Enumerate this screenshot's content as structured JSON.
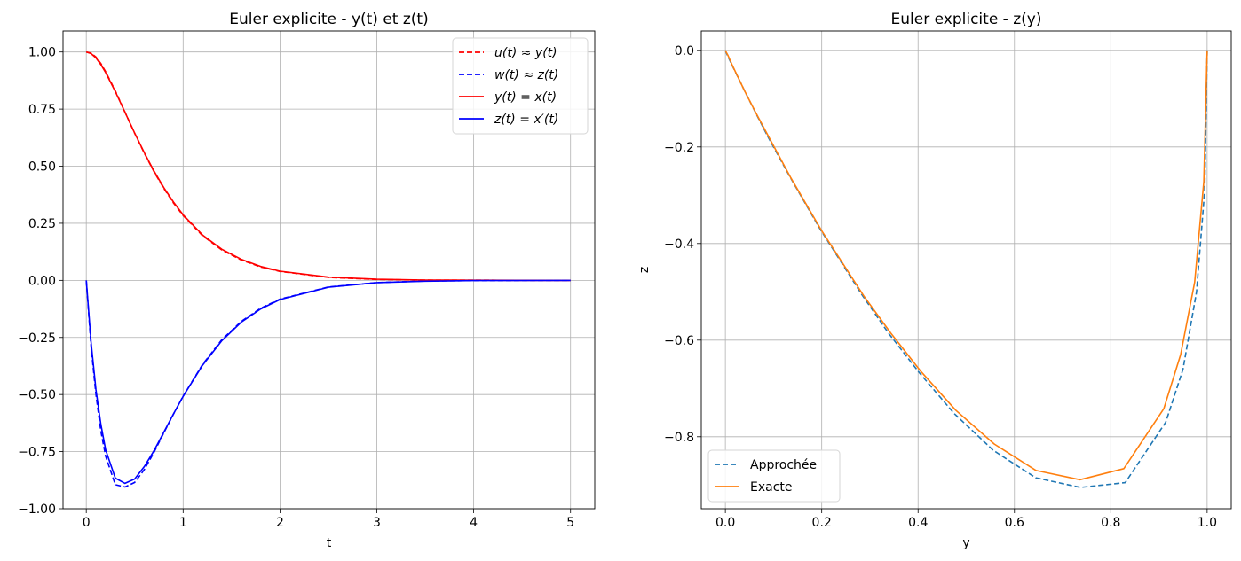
{
  "chart_data": [
    {
      "type": "line",
      "title": "Euler explicite - y(t) et z(t)",
      "xlabel": "t",
      "ylabel": "",
      "xlim": [
        -0.24,
        5.25
      ],
      "ylim": [
        -1.0,
        1.092
      ],
      "xticks": [
        0,
        1,
        2,
        3,
        4,
        5
      ],
      "xtick_labels": [
        "0",
        "1",
        "2",
        "3",
        "4",
        "5"
      ],
      "yticks": [
        1.0,
        0.75,
        0.5,
        0.25,
        0.0,
        -0.25,
        -0.5,
        -0.75,
        -1.0
      ],
      "ytick_labels": [
        "1.00",
        "0.75",
        "0.50",
        "0.25",
        "0.00",
        "−0.25",
        "−0.50",
        "−0.75",
        "−1.00"
      ],
      "grid": true,
      "legend_position": "top-right",
      "x": [
        0,
        0.05,
        0.1,
        0.15,
        0.2,
        0.3,
        0.4,
        0.5,
        0.6,
        0.7,
        0.8,
        0.9,
        1.0,
        1.2,
        1.4,
        1.6,
        1.8,
        2.0,
        2.5,
        3.0,
        3.5,
        4.0,
        5.0
      ],
      "series": [
        {
          "name": "u(t) ≈ y(t)",
          "color": "#ff0000",
          "style": "dashed",
          "values": [
            1,
            0.995,
            0.978,
            0.95,
            0.914,
            0.83,
            0.737,
            0.644,
            0.556,
            0.475,
            0.403,
            0.339,
            0.284,
            0.196,
            0.133,
            0.089,
            0.059,
            0.039,
            0.013,
            0.004,
            0.001,
            0.0004,
            0
          ]
        },
        {
          "name": "w(t) ≈ z(t)",
          "color": "#0000ff",
          "style": "dashed",
          "values": [
            0,
            -0.29,
            -0.5,
            -0.66,
            -0.77,
            -0.895,
            -0.905,
            -0.885,
            -0.828,
            -0.752,
            -0.668,
            -0.586,
            -0.507,
            -0.369,
            -0.26,
            -0.18,
            -0.122,
            -0.082,
            -0.029,
            -0.01,
            -0.003,
            -0.001,
            0
          ]
        },
        {
          "name": "y(t) = x(t)",
          "color": "#ff0000",
          "style": "solid",
          "values": [
            1,
            0.993,
            0.974,
            0.945,
            0.91,
            0.827,
            0.736,
            0.645,
            0.558,
            0.478,
            0.406,
            0.343,
            0.287,
            0.199,
            0.136,
            0.092,
            0.061,
            0.04,
            0.014,
            0.005,
            0.0015,
            0.0005,
            0
          ]
        },
        {
          "name": "z(t) = x′(t)",
          "color": "#0000ff",
          "style": "solid",
          "values": [
            0,
            -0.272,
            -0.48,
            -0.63,
            -0.742,
            -0.866,
            -0.889,
            -0.87,
            -0.815,
            -0.745,
            -0.665,
            -0.585,
            -0.508,
            -0.372,
            -0.264,
            -0.183,
            -0.125,
            -0.084,
            -0.03,
            -0.01,
            -0.0035,
            -0.001,
            0
          ]
        }
      ]
    },
    {
      "type": "line",
      "title": "Euler explicite - z(y)",
      "xlabel": "y",
      "ylabel": "z",
      "xlim": [
        -0.05,
        1.05
      ],
      "ylim": [
        -0.949,
        0.04
      ],
      "xticks": [
        0.0,
        0.2,
        0.4,
        0.6,
        0.8,
        1.0
      ],
      "xtick_labels": [
        "0.0",
        "0.2",
        "0.4",
        "0.6",
        "0.8",
        "1.0"
      ],
      "yticks": [
        0.0,
        -0.2,
        -0.4,
        -0.6,
        -0.8
      ],
      "ytick_labels": [
        "0.0",
        "−0.2",
        "−0.4",
        "−0.6",
        "−0.8"
      ],
      "grid": true,
      "legend_position": "bottom-left",
      "series": [
        {
          "name": "Approchée",
          "color": "#1f77b4",
          "style": "dashed",
          "x": [
            1,
            0.995,
            0.978,
            0.95,
            0.914,
            0.83,
            0.737,
            0.644,
            0.556,
            0.475,
            0.403,
            0.339,
            0.284,
            0.196,
            0.133,
            0.089,
            0.059,
            0.039,
            0.013,
            0.004,
            0.001,
            0.0004,
            0
          ],
          "y": [
            0,
            -0.29,
            -0.5,
            -0.66,
            -0.77,
            -0.895,
            -0.905,
            -0.885,
            -0.828,
            -0.752,
            -0.668,
            -0.586,
            -0.507,
            -0.369,
            -0.26,
            -0.18,
            -0.122,
            -0.082,
            -0.029,
            -0.01,
            -0.003,
            -0.001,
            0
          ]
        },
        {
          "name": "Exacte",
          "color": "#ff7f0e",
          "style": "solid",
          "x": [
            1,
            0.993,
            0.974,
            0.945,
            0.91,
            0.827,
            0.736,
            0.645,
            0.558,
            0.478,
            0.406,
            0.343,
            0.287,
            0.199,
            0.136,
            0.092,
            0.061,
            0.04,
            0.014,
            0.005,
            0.0015,
            0.0005,
            0
          ],
          "y": [
            0,
            -0.272,
            -0.48,
            -0.63,
            -0.742,
            -0.866,
            -0.889,
            -0.87,
            -0.815,
            -0.745,
            -0.665,
            -0.585,
            -0.508,
            -0.372,
            -0.264,
            -0.183,
            -0.125,
            -0.084,
            -0.03,
            -0.01,
            -0.0035,
            -0.001,
            0
          ]
        }
      ]
    }
  ]
}
